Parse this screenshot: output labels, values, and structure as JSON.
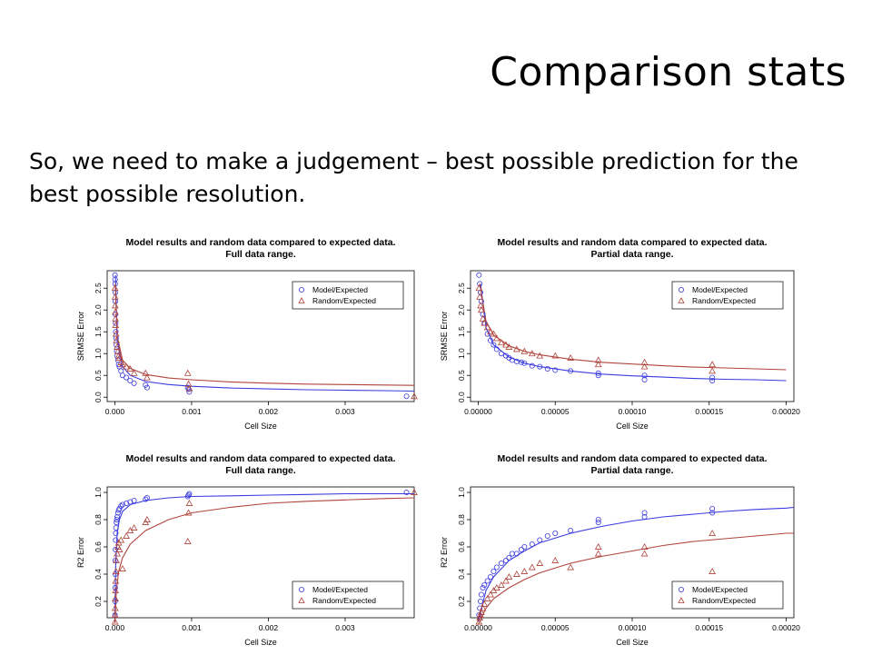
{
  "slide": {
    "title": "Comparison stats",
    "body": "So, we need to make a judgement – best possible prediction for the best possible resolution."
  },
  "colors": {
    "model": "#3a3ae0",
    "random": "#b0443c"
  },
  "chart_data": [
    {
      "type": "scatter",
      "title": "Model results and random data compared to expected data.",
      "subtitle": "Full data range.",
      "xlabel": "Cell Size",
      "ylabel": "SRMSE Error",
      "xlim": [
        -0.0001,
        0.0039
      ],
      "ylim": [
        -0.1,
        2.9
      ],
      "xticks": [
        0,
        0.001,
        0.002,
        0.003
      ],
      "xtick_labels": [
        "0.000",
        "0.001",
        "0.002",
        "0.003"
      ],
      "yticks": [
        0,
        0.5,
        1,
        1.5,
        2,
        2.5
      ],
      "ytick_labels": [
        "0.0",
        "0.5",
        "1.0",
        "1.5",
        "2.0",
        "2.5"
      ],
      "legend": {
        "position": "top-right",
        "entries": [
          "Model/Expected",
          "Random/Expected"
        ]
      },
      "series": [
        {
          "name": "Model/Expected",
          "marker": "circle",
          "x": [
            2e-06,
            3e-06,
            4e-06,
            5e-06,
            6e-06,
            8e-06,
            1e-05,
            1.2e-05,
            1.5e-05,
            2e-05,
            2.5e-05,
            3e-05,
            4e-05,
            5e-05,
            6e-05,
            8e-05,
            0.0001,
            0.00015,
            0.0002,
            0.00025,
            0.0004,
            0.00042,
            0.00095,
            0.00096,
            0.00097,
            0.0038
          ],
          "y": [
            2.8,
            2.7,
            2.6,
            2.4,
            2.2,
            1.9,
            1.7,
            1.5,
            1.35,
            1.2,
            1.05,
            0.95,
            0.85,
            0.75,
            0.7,
            0.6,
            0.5,
            0.45,
            0.38,
            0.32,
            0.28,
            0.22,
            0.22,
            0.18,
            0.12,
            0.02
          ]
        },
        {
          "name": "Random/Expected",
          "marker": "triangle",
          "x": [
            2e-06,
            3e-06,
            4e-06,
            6e-06,
            8e-06,
            1e-05,
            1.5e-05,
            2e-05,
            3e-05,
            4e-05,
            5e-05,
            6e-05,
            8e-05,
            0.0001,
            0.00015,
            0.0002,
            0.00025,
            0.0004,
            0.00042,
            0.00095,
            0.00096,
            0.00097,
            0.0039
          ],
          "y": [
            2.5,
            2.3,
            2.1,
            1.95,
            1.8,
            1.65,
            1.45,
            1.3,
            1.15,
            1.05,
            0.95,
            0.9,
            0.8,
            0.75,
            0.7,
            0.65,
            0.55,
            0.55,
            0.45,
            0.55,
            0.3,
            0.2,
            0.02
          ]
        }
      ],
      "fits": [
        {
          "series": "Model/Expected",
          "x": [
            8e-06,
            3e-05,
            0.0001,
            0.0002,
            0.0004,
            0.0007,
            0.001,
            0.0015,
            0.002,
            0.0025,
            0.003,
            0.0035,
            0.0039
          ],
          "y": [
            2.8,
            1.3,
            0.7,
            0.5,
            0.36,
            0.29,
            0.25,
            0.21,
            0.19,
            0.17,
            0.16,
            0.15,
            0.14
          ]
        },
        {
          "series": "Random/Expected",
          "x": [
            5e-06,
            3e-05,
            0.0001,
            0.0002,
            0.0004,
            0.0007,
            0.001,
            0.0015,
            0.002,
            0.0025,
            0.003,
            0.0035,
            0.0039
          ],
          "y": [
            2.6,
            1.4,
            0.85,
            0.66,
            0.52,
            0.44,
            0.4,
            0.35,
            0.32,
            0.3,
            0.29,
            0.28,
            0.27
          ]
        }
      ]
    },
    {
      "type": "scatter",
      "title": "Model results and random data compared to expected data.",
      "subtitle": "Partial data range.",
      "xlabel": "Cell Size",
      "ylabel": "SRMSE Error",
      "xlim": [
        -5e-06,
        0.000205
      ],
      "ylim": [
        -0.1,
        2.9
      ],
      "xticks": [
        0,
        5e-05,
        0.0001,
        0.00015,
        0.0002
      ],
      "xtick_labels": [
        "0.00000",
        "0.00005",
        "0.00010",
        "0.00015",
        "0.00020"
      ],
      "yticks": [
        0,
        0.5,
        1,
        1.5,
        2,
        2.5
      ],
      "ytick_labels": [
        "0.0",
        "0.5",
        "1.0",
        "1.5",
        "2.0",
        "2.5"
      ],
      "legend": {
        "position": "top-right",
        "entries": [
          "Model/Expected",
          "Random/Expected"
        ]
      },
      "series": [
        {
          "name": "Model/Expected",
          "marker": "circle",
          "x": [
            5e-07,
            1e-06,
            1.5e-06,
            2e-06,
            3e-06,
            4e-06,
            6e-06,
            8e-06,
            1e-05,
            1.2e-05,
            1.5e-05,
            1.8e-05,
            2e-05,
            2.2e-05,
            2.5e-05,
            2.8e-05,
            3e-05,
            3.5e-05,
            4e-05,
            4.5e-05,
            5e-05,
            6e-05,
            7.8e-05,
            7.8e-05,
            0.000108,
            0.000108,
            0.000152,
            0.000152
          ],
          "y": [
            2.8,
            2.6,
            2.4,
            2.2,
            1.9,
            1.7,
            1.45,
            1.3,
            1.2,
            1.1,
            1.0,
            0.95,
            0.9,
            0.85,
            0.82,
            0.8,
            0.78,
            0.72,
            0.7,
            0.65,
            0.62,
            0.6,
            0.55,
            0.5,
            0.5,
            0.4,
            0.45,
            0.38
          ]
        },
        {
          "name": "Random/Expected",
          "marker": "triangle",
          "x": [
            5e-07,
            1e-06,
            1.5e-06,
            2e-06,
            3e-06,
            4e-06,
            6e-06,
            8e-06,
            1e-05,
            1.2e-05,
            1.5e-05,
            1.8e-05,
            2e-05,
            2.5e-05,
            3e-05,
            3.5e-05,
            4e-05,
            5e-05,
            6e-05,
            7.8e-05,
            7.8e-05,
            0.000108,
            0.000108,
            0.000152,
            0.000152
          ],
          "y": [
            2.5,
            2.3,
            2.1,
            2.0,
            1.8,
            1.7,
            1.6,
            1.5,
            1.45,
            1.35,
            1.25,
            1.2,
            1.15,
            1.1,
            1.05,
            1.0,
            0.95,
            0.95,
            0.9,
            0.85,
            0.75,
            0.8,
            0.7,
            0.75,
            0.6
          ]
        }
      ],
      "fits": [
        {
          "series": "Model/Expected",
          "x": [
            1.5e-06,
            5e-06,
            1e-05,
            2e-05,
            3e-05,
            4e-05,
            6e-05,
            8e-05,
            0.0001,
            0.00012,
            0.00014,
            0.00016,
            0.00018,
            0.0002
          ],
          "y": [
            2.6,
            1.6,
            1.2,
            0.92,
            0.78,
            0.7,
            0.6,
            0.53,
            0.49,
            0.46,
            0.43,
            0.41,
            0.4,
            0.38
          ]
        },
        {
          "series": "Random/Expected",
          "x": [
            1e-06,
            5e-06,
            1e-05,
            2e-05,
            3e-05,
            4e-05,
            6e-05,
            8e-05,
            0.0001,
            0.00012,
            0.00014,
            0.00016,
            0.00018,
            0.0002
          ],
          "y": [
            2.6,
            1.75,
            1.42,
            1.18,
            1.05,
            0.97,
            0.87,
            0.8,
            0.76,
            0.72,
            0.69,
            0.67,
            0.65,
            0.63
          ]
        }
      ]
    },
    {
      "type": "scatter",
      "title": "Model results and random data compared to expected data.",
      "subtitle": "Full data range.",
      "xlabel": "Cell Size",
      "ylabel": "R2 Error",
      "xlim": [
        -0.0001,
        0.0039
      ],
      "ylim": [
        0.08,
        1.04
      ],
      "xticks": [
        0,
        0.001,
        0.002,
        0.003
      ],
      "xtick_labels": [
        "0.000",
        "0.001",
        "0.002",
        "0.003"
      ],
      "yticks": [
        0.2,
        0.4,
        0.6,
        0.8,
        1.0
      ],
      "ytick_labels": [
        "0.2",
        "0.4",
        "0.6",
        "0.8",
        "1.0"
      ],
      "legend": {
        "position": "bottom-right",
        "entries": [
          "Model/Expected",
          "Random/Expected"
        ]
      },
      "series": [
        {
          "name": "Model/Expected",
          "marker": "circle",
          "x": [
            2e-06,
            3e-06,
            4e-06,
            5e-06,
            6e-06,
            8e-06,
            1e-05,
            1.2e-05,
            1.5e-05,
            2e-05,
            2.5e-05,
            3e-05,
            4e-05,
            5e-05,
            6e-05,
            8e-05,
            0.0001,
            0.00015,
            0.0002,
            0.00025,
            0.0004,
            0.00042,
            0.00095,
            0.00096,
            0.00097,
            0.0038
          ],
          "y": [
            0.1,
            0.2,
            0.3,
            0.4,
            0.5,
            0.58,
            0.65,
            0.7,
            0.74,
            0.78,
            0.8,
            0.82,
            0.85,
            0.87,
            0.88,
            0.9,
            0.91,
            0.92,
            0.93,
            0.94,
            0.95,
            0.96,
            0.97,
            0.98,
            0.99,
            1.0
          ]
        },
        {
          "name": "Random/Expected",
          "marker": "triangle",
          "x": [
            2e-06,
            3e-06,
            4e-06,
            6e-06,
            8e-06,
            1e-05,
            1.5e-05,
            2e-05,
            3e-05,
            4e-05,
            5e-05,
            6e-05,
            8e-05,
            0.0001,
            0.00015,
            0.0002,
            0.00025,
            0.0004,
            0.00042,
            0.00095,
            0.00096,
            0.00097,
            0.0039
          ],
          "y": [
            0.05,
            0.1,
            0.15,
            0.22,
            0.28,
            0.35,
            0.42,
            0.5,
            0.55,
            0.6,
            0.63,
            0.58,
            0.65,
            0.44,
            0.68,
            0.72,
            0.74,
            0.78,
            0.8,
            0.64,
            0.85,
            0.92,
            1.0
          ]
        }
      ],
      "fits": [
        {
          "series": "Model/Expected",
          "x": [
            0,
            1e-05,
            3e-05,
            6e-05,
            0.0001,
            0.0002,
            0.0004,
            0.0007,
            0.001,
            0.0015,
            0.002,
            0.0025,
            0.003,
            0.0035,
            0.0039
          ],
          "y": [
            0.05,
            0.45,
            0.7,
            0.8,
            0.86,
            0.91,
            0.94,
            0.96,
            0.97,
            0.975,
            0.98,
            0.985,
            0.99,
            0.99,
            0.99
          ]
        },
        {
          "series": "Random/Expected",
          "x": [
            0,
            2e-05,
            5e-05,
            0.0001,
            0.0002,
            0.0004,
            0.0007,
            0.001,
            0.0015,
            0.002,
            0.0025,
            0.003,
            0.0035,
            0.0039
          ],
          "y": [
            0.04,
            0.28,
            0.42,
            0.52,
            0.62,
            0.72,
            0.8,
            0.85,
            0.89,
            0.92,
            0.935,
            0.945,
            0.955,
            0.96
          ]
        }
      ]
    },
    {
      "type": "scatter",
      "title": "Model results and random data compared to expected data.",
      "subtitle": "Partial data range.",
      "xlabel": "Cell Size",
      "ylabel": "R2 Error",
      "xlim": [
        -5e-06,
        0.000205
      ],
      "ylim": [
        0.08,
        1.04
      ],
      "xticks": [
        0,
        5e-05,
        0.0001,
        0.00015,
        0.0002
      ],
      "xtick_labels": [
        "0.00000",
        "0.00005",
        "0.00010",
        "0.00015",
        "0.00020"
      ],
      "yticks": [
        0.2,
        0.4,
        0.6,
        0.8,
        1.0
      ],
      "ytick_labels": [
        "0.2",
        "0.4",
        "0.6",
        "0.8",
        "1.0"
      ],
      "legend": {
        "position": "bottom-right",
        "entries": [
          "Model/Expected",
          "Random/Expected"
        ]
      },
      "series": [
        {
          "name": "Model/Expected",
          "marker": "circle",
          "x": [
            5e-07,
            1e-06,
            1.5e-06,
            2e-06,
            3e-06,
            4e-06,
            6e-06,
            8e-06,
            1e-05,
            1.2e-05,
            1.5e-05,
            1.8e-05,
            2e-05,
            2.2e-05,
            2.5e-05,
            2.8e-05,
            3e-05,
            3.5e-05,
            4e-05,
            4.5e-05,
            5e-05,
            6e-05,
            7.8e-05,
            7.8e-05,
            0.000108,
            0.000108,
            0.000152,
            0.000152
          ],
          "y": [
            0.1,
            0.15,
            0.2,
            0.25,
            0.3,
            0.32,
            0.35,
            0.38,
            0.42,
            0.45,
            0.48,
            0.5,
            0.52,
            0.55,
            0.55,
            0.58,
            0.6,
            0.62,
            0.65,
            0.68,
            0.7,
            0.72,
            0.78,
            0.8,
            0.82,
            0.85,
            0.85,
            0.88
          ]
        },
        {
          "name": "Random/Expected",
          "marker": "triangle",
          "x": [
            5e-07,
            1e-06,
            1.5e-06,
            2e-06,
            3e-06,
            4e-06,
            6e-06,
            8e-06,
            1e-05,
            1.2e-05,
            1.5e-05,
            1.8e-05,
            2e-05,
            2.5e-05,
            3e-05,
            3.5e-05,
            4e-05,
            5e-05,
            6e-05,
            7.8e-05,
            7.8e-05,
            0.000108,
            0.000108,
            0.000152,
            0.000152
          ],
          "y": [
            0.05,
            0.08,
            0.1,
            0.12,
            0.15,
            0.18,
            0.22,
            0.25,
            0.28,
            0.3,
            0.32,
            0.35,
            0.38,
            0.4,
            0.42,
            0.45,
            0.48,
            0.5,
            0.45,
            0.55,
            0.6,
            0.55,
            0.6,
            0.7,
            0.42
          ]
        }
      ],
      "fits": [
        {
          "series": "Model/Expected",
          "x": [
            0,
            5e-06,
            1e-05,
            2e-05,
            3e-05,
            4e-05,
            6e-05,
            8e-05,
            0.0001,
            0.00012,
            0.00014,
            0.00016,
            0.00018,
            0.0002,
            0.000205
          ],
          "y": [
            0.05,
            0.28,
            0.38,
            0.5,
            0.57,
            0.63,
            0.7,
            0.75,
            0.79,
            0.82,
            0.84,
            0.86,
            0.875,
            0.885,
            0.89
          ]
        },
        {
          "series": "Random/Expected",
          "x": [
            0,
            5e-06,
            1e-05,
            2e-05,
            3e-05,
            4e-05,
            6e-05,
            8e-05,
            0.0001,
            0.00012,
            0.00014,
            0.00016,
            0.00018,
            0.0002,
            0.000205
          ],
          "y": [
            0.03,
            0.15,
            0.22,
            0.3,
            0.36,
            0.41,
            0.48,
            0.53,
            0.57,
            0.61,
            0.64,
            0.66,
            0.68,
            0.7,
            0.7
          ]
        }
      ]
    }
  ]
}
